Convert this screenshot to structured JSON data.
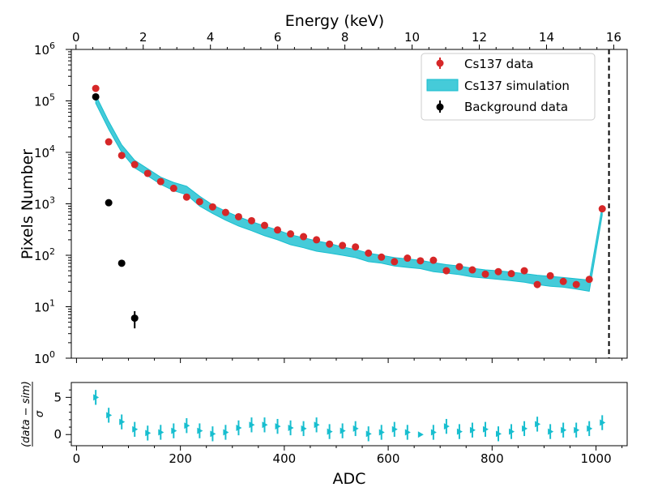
{
  "chart_data": [
    {
      "type": "scatter",
      "panel": "main",
      "yscale": "log",
      "ylabel": "Pixels Number",
      "top_xlabel": "Energy (keV)",
      "ylim": [
        1,
        1000000
      ],
      "xlim": [
        -10,
        1060
      ],
      "top_xlim": [
        -0.14,
        16.4
      ],
      "y_ticks": [
        {
          "value": 1,
          "base": "10",
          "exp": "0"
        },
        {
          "value": 10,
          "base": "10",
          "exp": "1"
        },
        {
          "value": 100,
          "base": "10",
          "exp": "2"
        },
        {
          "value": 1000,
          "base": "10",
          "exp": "3"
        },
        {
          "value": 10000,
          "base": "10",
          "exp": "4"
        },
        {
          "value": 100000,
          "base": "10",
          "exp": "5"
        },
        {
          "value": 1000000,
          "base": "10",
          "exp": "6"
        }
      ],
      "top_x_ticks": [
        "0",
        "2",
        "4",
        "6",
        "8",
        "10",
        "12",
        "14",
        "16"
      ],
      "vertical_line_x": 1025,
      "legend": {
        "position": "top-right",
        "entries": [
          {
            "label": "Cs137 data",
            "color": "#d62728",
            "kind": "errorbar"
          },
          {
            "label": "Cs137 simulation",
            "color": "#17becf",
            "kind": "band"
          },
          {
            "label": "Background data",
            "color": "#000000",
            "kind": "errorbar"
          }
        ]
      },
      "series": [
        {
          "name": "Cs137 data",
          "color": "#d62728",
          "x": [
            37,
            62,
            87,
            112,
            137,
            162,
            187,
            212,
            237,
            262,
            287,
            312,
            337,
            362,
            387,
            412,
            437,
            462,
            487,
            512,
            537,
            562,
            587,
            612,
            637,
            662,
            687,
            712,
            737,
            762,
            787,
            812,
            837,
            862,
            887,
            912,
            937,
            962,
            987,
            1012
          ],
          "y": [
            175000,
            16000,
            8700,
            5800,
            3900,
            2700,
            2000,
            1350,
            1100,
            870,
            680,
            560,
            470,
            380,
            310,
            260,
            230,
            200,
            165,
            155,
            145,
            110,
            92,
            75,
            88,
            78,
            80,
            50,
            60,
            52,
            43,
            48,
            44,
            50,
            27,
            40,
            31,
            27,
            34,
            800
          ],
          "yerr_low": [
            0,
            0,
            0,
            0,
            0,
            0,
            0,
            0,
            0,
            0,
            0,
            0,
            0,
            0,
            0,
            0,
            0,
            0,
            0,
            0,
            0,
            0,
            0,
            0,
            0,
            0,
            0,
            0,
            0,
            0,
            0,
            0,
            0,
            0,
            4,
            0,
            4,
            4,
            0,
            0
          ],
          "yerr_high": [
            0,
            0,
            0,
            0,
            0,
            0,
            0,
            0,
            0,
            0,
            0,
            0,
            0,
            0,
            0,
            0,
            0,
            0,
            0,
            0,
            0,
            0,
            0,
            0,
            0,
            0,
            0,
            0,
            0,
            0,
            0,
            0,
            0,
            0,
            4,
            0,
            4,
            4,
            0,
            0
          ]
        },
        {
          "name": "Cs137 simulation",
          "color": "#17becf",
          "kind": "band",
          "x": [
            37,
            62,
            87,
            112,
            137,
            162,
            187,
            212,
            237,
            262,
            287,
            312,
            337,
            362,
            387,
            412,
            437,
            462,
            487,
            512,
            537,
            562,
            587,
            612,
            637,
            662,
            687,
            712,
            737,
            762,
            787,
            812,
            837,
            862,
            887,
            912,
            937,
            962,
            987,
            1012
          ],
          "low": [
            90000,
            28000,
            10000,
            5000,
            3500,
            2400,
            1800,
            1500,
            900,
            650,
            480,
            370,
            300,
            240,
            200,
            160,
            140,
            120,
            110,
            100,
            90,
            75,
            70,
            62,
            58,
            55,
            48,
            45,
            42,
            38,
            36,
            34,
            32,
            30,
            27,
            25,
            24,
            22,
            20,
            600
          ],
          "high": [
            130000,
            40000,
            14000,
            7000,
            4800,
            3300,
            2600,
            2200,
            1400,
            950,
            720,
            560,
            450,
            370,
            310,
            250,
            220,
            190,
            170,
            145,
            130,
            110,
            100,
            90,
            85,
            80,
            72,
            66,
            62,
            56,
            52,
            50,
            47,
            44,
            41,
            39,
            37,
            35,
            33,
            900
          ]
        },
        {
          "name": "Background data",
          "color": "#000000",
          "x": [
            37,
            62,
            87,
            112
          ],
          "y": [
            120000,
            1050,
            70,
            6
          ],
          "yerr_low": [
            0,
            0,
            0,
            2.2
          ],
          "yerr_high": [
            0,
            0,
            0,
            2.2
          ]
        }
      ]
    },
    {
      "type": "scatter",
      "panel": "residual",
      "xlabel": "ADC",
      "ylabel": "(data − sim) / σ",
      "ylabel_numerator": "(data − sim)",
      "ylabel_denominator": "σ",
      "ylim": [
        -1.5,
        7
      ],
      "xlim": [
        -10,
        1060
      ],
      "x_ticks": [
        "0",
        "200",
        "400",
        "600",
        "800",
        "1000"
      ],
      "x_tick_values": [
        0,
        200,
        400,
        600,
        800,
        1000
      ],
      "y_ticks": [
        "0",
        "5"
      ],
      "y_tick_values": [
        0,
        5
      ],
      "series": [
        {
          "name": "residual",
          "color": "#17becf",
          "x": [
            37,
            62,
            87,
            112,
            137,
            162,
            187,
            212,
            237,
            262,
            287,
            312,
            337,
            362,
            387,
            412,
            437,
            462,
            487,
            512,
            537,
            562,
            587,
            612,
            637,
            662,
            687,
            712,
            737,
            762,
            787,
            812,
            837,
            862,
            887,
            912,
            937,
            962,
            987,
            1012
          ],
          "y": [
            5.0,
            2.6,
            1.7,
            0.7,
            0.2,
            0.3,
            0.5,
            1.2,
            0.5,
            0.1,
            0.3,
            0.9,
            1.3,
            1.3,
            1.1,
            0.9,
            0.8,
            1.3,
            0.4,
            0.5,
            0.8,
            0.1,
            0.3,
            0.7,
            0.3,
            0.0,
            0.3,
            1.1,
            0.4,
            0.6,
            0.7,
            0.1,
            0.4,
            0.8,
            1.4,
            0.4,
            0.6,
            0.6,
            0.8,
            1.6
          ],
          "yerr": [
            1.0,
            1.0,
            1.0,
            1.0,
            1.0,
            1.0,
            1.0,
            1.0,
            1.0,
            1.0,
            1.0,
            1.0,
            1.0,
            1.0,
            1.0,
            1.0,
            1.0,
            1.0,
            1.0,
            1.0,
            1.0,
            1.0,
            1.0,
            1.0,
            1.0,
            0.0,
            1.0,
            1.0,
            1.0,
            1.0,
            1.0,
            1.0,
            1.0,
            1.0,
            1.0,
            1.0,
            1.0,
            1.0,
            1.0,
            1.0
          ]
        }
      ]
    }
  ]
}
